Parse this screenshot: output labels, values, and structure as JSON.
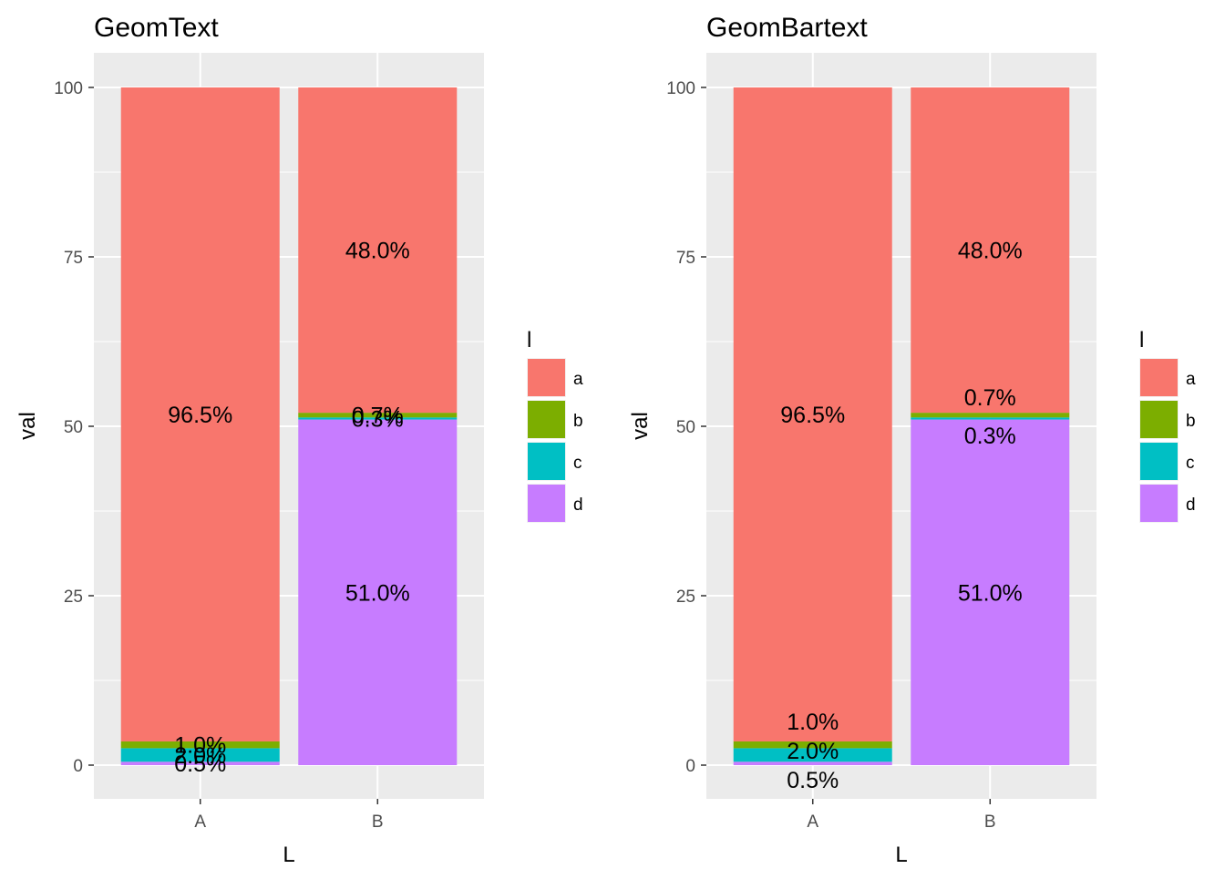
{
  "chart_data": [
    {
      "type": "bar",
      "stacked": true,
      "title": "GeomText",
      "xlabel": "L",
      "ylabel": "val",
      "categories": [
        "A",
        "B"
      ],
      "ylim": [
        0,
        100
      ],
      "yticks": [
        0,
        25,
        50,
        75,
        100
      ],
      "grid": true,
      "legend": {
        "title": "l",
        "position": "right",
        "entries": [
          "a",
          "b",
          "c",
          "d"
        ]
      },
      "series": [
        {
          "name": "a",
          "color": "#F8766D",
          "values": [
            96.5,
            48.0
          ],
          "labels": [
            "96.5%",
            "48.0%"
          ]
        },
        {
          "name": "b",
          "color": "#7CAE00",
          "values": [
            1.0,
            0.7
          ],
          "labels": [
            "1.0%",
            "0.7%"
          ]
        },
        {
          "name": "c",
          "color": "#00BFC4",
          "values": [
            2.0,
            0.3
          ],
          "labels": [
            "2.0%",
            "0.3%"
          ]
        },
        {
          "name": "d",
          "color": "#C77CFF",
          "values": [
            0.5,
            51.0
          ],
          "labels": [
            "0.5%",
            "51.0%"
          ]
        }
      ]
    },
    {
      "type": "bar",
      "stacked": true,
      "title": "GeomBartext",
      "xlabel": "L",
      "ylabel": "val",
      "categories": [
        "A",
        "B"
      ],
      "ylim": [
        0,
        100
      ],
      "yticks": [
        0,
        25,
        50,
        75,
        100
      ],
      "grid": true,
      "legend": {
        "title": "l",
        "position": "right",
        "entries": [
          "a",
          "b",
          "c",
          "d"
        ]
      },
      "series": [
        {
          "name": "a",
          "color": "#F8766D",
          "values": [
            96.5,
            48.0
          ],
          "labels": [
            "96.5%",
            "48.0%"
          ]
        },
        {
          "name": "b",
          "color": "#7CAE00",
          "values": [
            1.0,
            0.7
          ],
          "labels": [
            "1.0%",
            "0.7%"
          ]
        },
        {
          "name": "c",
          "color": "#00BFC4",
          "values": [
            2.0,
            0.3
          ],
          "labels": [
            "2.0%",
            "0.3%"
          ]
        },
        {
          "name": "d",
          "color": "#C77CFF",
          "values": [
            0.5,
            51.0
          ],
          "labels": [
            "0.5%",
            "51.0%"
          ]
        }
      ]
    }
  ]
}
